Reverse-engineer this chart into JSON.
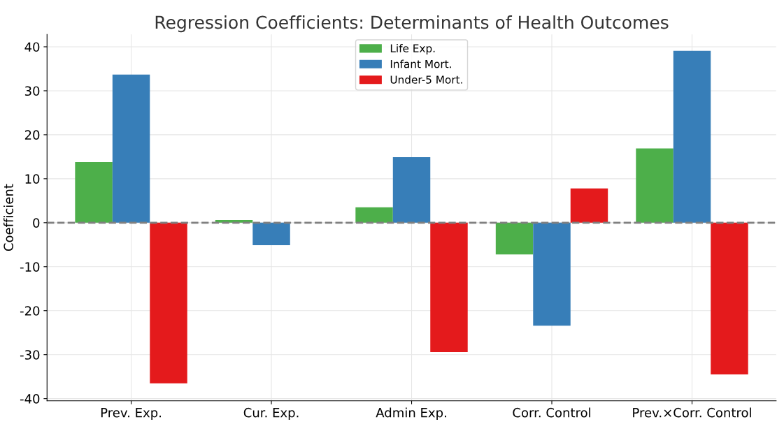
{
  "chart_data": {
    "type": "bar",
    "title": "Regression Coefficients: Determinants of Health Outcomes",
    "ylabel": "Coefficient",
    "categories": [
      "Prev. Exp.",
      "Cur. Exp.",
      "Admin Exp.",
      "Corr. Control",
      "Prev.×Corr. Control"
    ],
    "series": [
      {
        "name": "Life Exp.",
        "color": "#4daf4a",
        "values": [
          13.8,
          0.6,
          3.5,
          -7.2,
          16.9
        ]
      },
      {
        "name": "Infant Mort.",
        "color": "#377eb8",
        "values": [
          33.7,
          -5.1,
          14.9,
          -23.4,
          39.1
        ]
      },
      {
        "name": "Under-5 Mort.",
        "color": "#e41a1c",
        "values": [
          -36.5,
          0,
          -29.4,
          7.8,
          -34.5
        ]
      }
    ],
    "ylim": [
      -40.5,
      42.8
    ],
    "yticks": [
      -40,
      -30,
      -20,
      -10,
      0,
      10,
      20,
      30,
      40
    ],
    "ref_lines": [
      {
        "axis": "y",
        "value": 0,
        "color": "#808080",
        "line_style": "dashed"
      }
    ],
    "grid": true,
    "legend": "top"
  }
}
